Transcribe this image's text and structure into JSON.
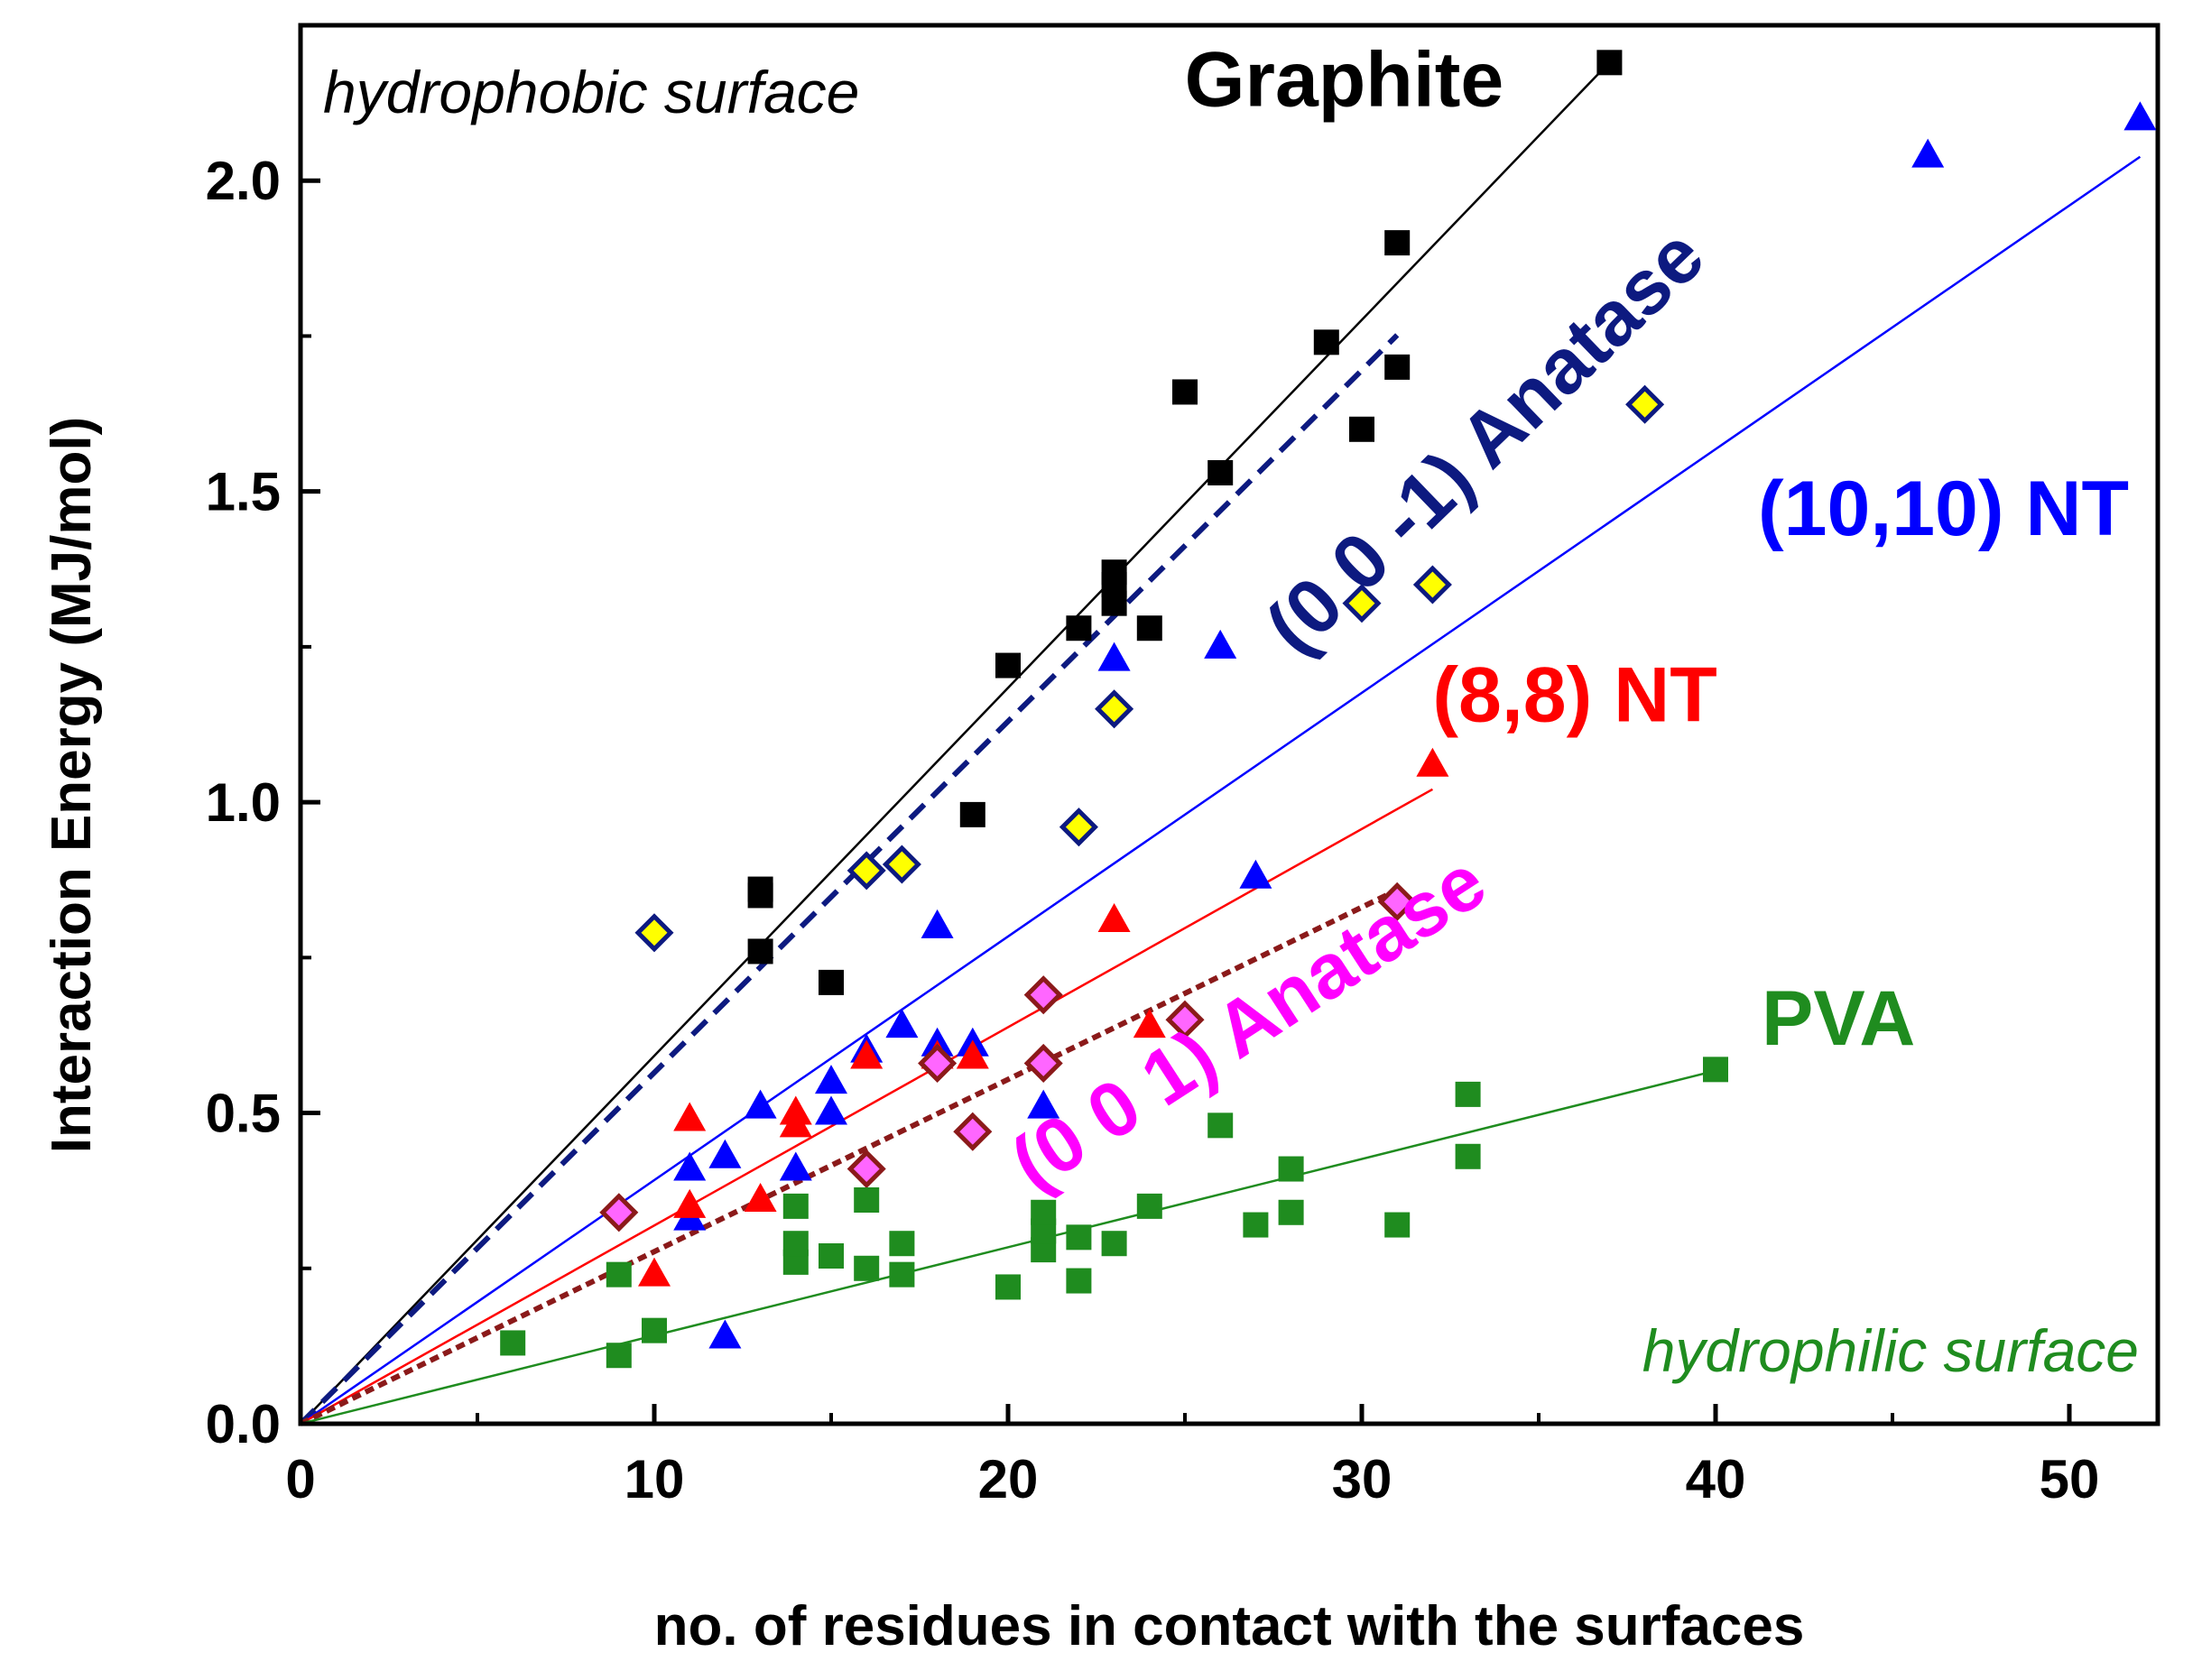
{
  "chart_data": {
    "type": "scatter",
    "title": "",
    "xlabel": "no. of residues in contact with the surfaces",
    "ylabel": "Interaction Energy (MJ/mol)",
    "xlim": [
      0,
      52.5
    ],
    "ylim": [
      0,
      2.25
    ],
    "xticks": [
      0,
      10,
      20,
      30,
      40,
      50
    ],
    "yticks": [
      0.0,
      0.5,
      1.0,
      1.5,
      2.0
    ],
    "xtick_labels": [
      "0",
      "10",
      "20",
      "30",
      "40",
      "50"
    ],
    "ytick_labels": [
      "0.0",
      "0.5",
      "1.0",
      "1.5",
      "2.0"
    ],
    "grid": false,
    "annotations": {
      "top_left": "hydrophobic surface",
      "bottom_right": "hydrophilic surface"
    },
    "series": [
      {
        "name": "Graphite",
        "color": "#000000",
        "marker": "square",
        "fit": {
          "slope": 0.0592,
          "x_end": 37,
          "style": "solid"
        },
        "label_pos": [
          29.5,
          2.12
        ],
        "points": [
          [
            13,
            0.86
          ],
          [
            13,
            0.85
          ],
          [
            13,
            0.76
          ],
          [
            15,
            0.71
          ],
          [
            19,
            0.98
          ],
          [
            20,
            1.22
          ],
          [
            22,
            1.28
          ],
          [
            23,
            1.32
          ],
          [
            23,
            1.35
          ],
          [
            23,
            1.37
          ],
          [
            24,
            1.28
          ],
          [
            25,
            1.66
          ],
          [
            26,
            1.53
          ],
          [
            29,
            1.74
          ],
          [
            30,
            1.6
          ],
          [
            31,
            1.7
          ],
          [
            31,
            1.9
          ],
          [
            37,
            2.19
          ]
        ]
      },
      {
        "name": "(0 0 -1) Anatase",
        "color": "#0d1a80",
        "marker": "diamond-yellow",
        "fit": {
          "slope": 0.0565,
          "x_end": 31,
          "style": "dashed"
        },
        "label_pos": [
          34,
          1.55
        ],
        "label_angle": -44,
        "points": [
          [
            10,
            0.79
          ],
          [
            16,
            0.89
          ],
          [
            17,
            0.9
          ],
          [
            22,
            0.96
          ],
          [
            23,
            1.15
          ],
          [
            30,
            1.32
          ],
          [
            32,
            1.35
          ],
          [
            38,
            1.64
          ]
        ]
      },
      {
        "name": "(10,10) NT",
        "color": "#0000ff",
        "marker": "triangle",
        "fit": {
          "slope": 0.0392,
          "x_end": 52,
          "style": "solid"
        },
        "label_pos": [
          41.2,
          1.43
        ],
        "points": [
          [
            11,
            0.33
          ],
          [
            11,
            0.41
          ],
          [
            12,
            0.14
          ],
          [
            12,
            0.43
          ],
          [
            13,
            0.51
          ],
          [
            14,
            0.41
          ],
          [
            15,
            0.5
          ],
          [
            15,
            0.55
          ],
          [
            16,
            0.6
          ],
          [
            17,
            0.64
          ],
          [
            18,
            0.61
          ],
          [
            18,
            0.8
          ],
          [
            19,
            0.61
          ],
          [
            21,
            0.51
          ],
          [
            23,
            1.23
          ],
          [
            26,
            1.25
          ],
          [
            27,
            0.88
          ],
          [
            46,
            2.04
          ],
          [
            52,
            2.1
          ]
        ]
      },
      {
        "name": "(8,8) NT",
        "color": "#ff0000",
        "marker": "triangle",
        "fit": {
          "slope": 0.0319,
          "x_end": 32,
          "style": "solid"
        },
        "label_pos": [
          32,
          1.13
        ],
        "points": [
          [
            10,
            0.24
          ],
          [
            11,
            0.35
          ],
          [
            11,
            0.49
          ],
          [
            13,
            0.36
          ],
          [
            14,
            0.48
          ],
          [
            14,
            0.5
          ],
          [
            16,
            0.59
          ],
          [
            18,
            0.59
          ],
          [
            19,
            0.59
          ],
          [
            23,
            0.81
          ],
          [
            24,
            0.64
          ],
          [
            32,
            1.06
          ]
        ]
      },
      {
        "name": "(0 0 1) Anatase",
        "color": "#ff00ff",
        "marker": "diamond-magenta",
        "fit": {
          "slope": 0.0277,
          "x_end": 31,
          "style": "dotted",
          "line_color": "#8b1a1a"
        },
        "label_pos": [
          27.2,
          0.61
        ],
        "label_angle": -33,
        "points": [
          [
            9,
            0.34
          ],
          [
            16,
            0.41
          ],
          [
            18,
            0.58
          ],
          [
            19,
            0.47
          ],
          [
            21,
            0.58
          ],
          [
            21,
            0.69
          ],
          [
            25,
            0.65
          ],
          [
            31,
            0.84
          ]
        ]
      },
      {
        "name": "PVA",
        "color": "#1f8c1f",
        "marker": "square",
        "fit": {
          "slope": 0.0142,
          "x_end": 40,
          "style": "solid"
        },
        "label_pos": [
          41.3,
          0.61
        ],
        "points": [
          [
            6,
            0.13
          ],
          [
            9,
            0.11
          ],
          [
            9,
            0.24
          ],
          [
            10,
            0.15
          ],
          [
            14,
            0.26
          ],
          [
            14,
            0.29
          ],
          [
            14,
            0.35
          ],
          [
            15,
            0.27
          ],
          [
            16,
            0.25
          ],
          [
            16,
            0.36
          ],
          [
            17,
            0.24
          ],
          [
            17,
            0.29
          ],
          [
            20,
            0.22
          ],
          [
            21,
            0.28
          ],
          [
            21,
            0.31
          ],
          [
            21,
            0.34
          ],
          [
            22,
            0.23
          ],
          [
            22,
            0.3
          ],
          [
            23,
            0.29
          ],
          [
            24,
            0.35
          ],
          [
            26,
            0.48
          ],
          [
            27,
            0.32
          ],
          [
            28,
            0.34
          ],
          [
            28,
            0.41
          ],
          [
            31,
            0.32
          ],
          [
            33,
            0.43
          ],
          [
            33,
            0.53
          ],
          [
            40,
            0.57
          ]
        ]
      }
    ]
  }
}
